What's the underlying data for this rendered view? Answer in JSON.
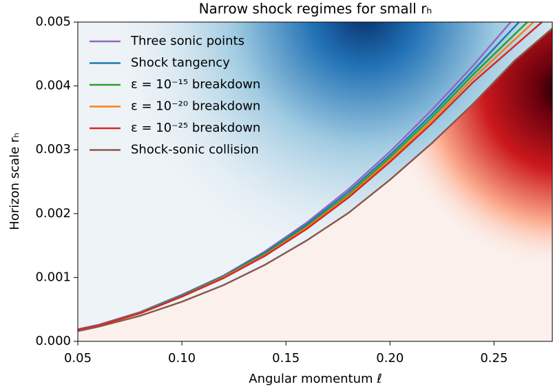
{
  "chart_data": {
    "type": "line",
    "title": "Narrow shock regimes for small rₕ",
    "xlabel": "Angular momentum ℓ",
    "ylabel": "Horizon scale rₕ",
    "xlim": [
      0.05,
      0.278
    ],
    "ylim": [
      0,
      0.005
    ],
    "xticks": [
      0.05,
      {
        "value": 0.1,
        "label": "0.10"
      },
      0.15,
      {
        "value": 0.2,
        "label": "0.20"
      },
      0.25
    ],
    "yticks": [
      {
        "value": 0,
        "label": "0.000"
      },
      0.001,
      0.002,
      0.003,
      0.004,
      0.005
    ],
    "legend": "upper left",
    "series": [
      {
        "name": "Three sonic points",
        "color": "#9467bd",
        "x": [
          0.05,
          0.06,
          0.08,
          0.1,
          0.12,
          0.14,
          0.16,
          0.18,
          0.2,
          0.22,
          0.24,
          0.258
        ],
        "values": [
          0.00019,
          0.00026,
          0.00046,
          0.00073,
          0.00103,
          0.00141,
          0.00186,
          0.00238,
          0.00297,
          0.00362,
          0.00432,
          0.005
        ]
      },
      {
        "name": "Shock tangency",
        "color": "#1f77b4",
        "x": [
          0.05,
          0.06,
          0.08,
          0.1,
          0.12,
          0.14,
          0.16,
          0.18,
          0.2,
          0.22,
          0.24,
          0.262
        ],
        "values": [
          0.00018,
          0.00025,
          0.00045,
          0.00072,
          0.00102,
          0.00139,
          0.00183,
          0.00234,
          0.00292,
          0.00355,
          0.00424,
          0.005
        ]
      },
      {
        "name": "ε = 10⁻¹⁵ breakdown",
        "color": "#2ca02c",
        "x": [
          0.05,
          0.06,
          0.08,
          0.1,
          0.12,
          0.14,
          0.16,
          0.18,
          0.2,
          0.22,
          0.24,
          0.266
        ],
        "values": [
          0.00018,
          0.00025,
          0.00045,
          0.00071,
          0.00101,
          0.00137,
          0.0018,
          0.0023,
          0.00288,
          0.0035,
          0.00418,
          0.005
        ]
      },
      {
        "name": "ε = 10⁻²⁰ breakdown",
        "color": "#ff7f0e",
        "x": [
          0.05,
          0.06,
          0.08,
          0.1,
          0.12,
          0.14,
          0.16,
          0.18,
          0.2,
          0.22,
          0.24,
          0.269
        ],
        "values": [
          0.00018,
          0.00025,
          0.00044,
          0.0007,
          0.001,
          0.00135,
          0.00178,
          0.00227,
          0.00284,
          0.00345,
          0.00412,
          0.005
        ]
      },
      {
        "name": "ε = 10⁻²⁵ breakdown",
        "color": "#d62728",
        "x": [
          0.05,
          0.06,
          0.08,
          0.1,
          0.12,
          0.14,
          0.16,
          0.18,
          0.2,
          0.22,
          0.24,
          0.273
        ],
        "values": [
          0.00018,
          0.00025,
          0.00044,
          0.0007,
          0.00099,
          0.00134,
          0.00176,
          0.00225,
          0.00281,
          0.00341,
          0.00406,
          0.005
        ]
      },
      {
        "name": "Shock-sonic collision",
        "color": "#8c564b",
        "x": [
          0.05,
          0.06,
          0.08,
          0.1,
          0.12,
          0.14,
          0.16,
          0.18,
          0.2,
          0.22,
          0.24,
          0.26,
          0.278
        ],
        "values": [
          0.00016,
          0.00023,
          0.0004,
          0.00062,
          0.00088,
          0.0012,
          0.00158,
          0.00201,
          0.00253,
          0.0031,
          0.00372,
          0.0044,
          0.0049
        ]
      }
    ]
  }
}
